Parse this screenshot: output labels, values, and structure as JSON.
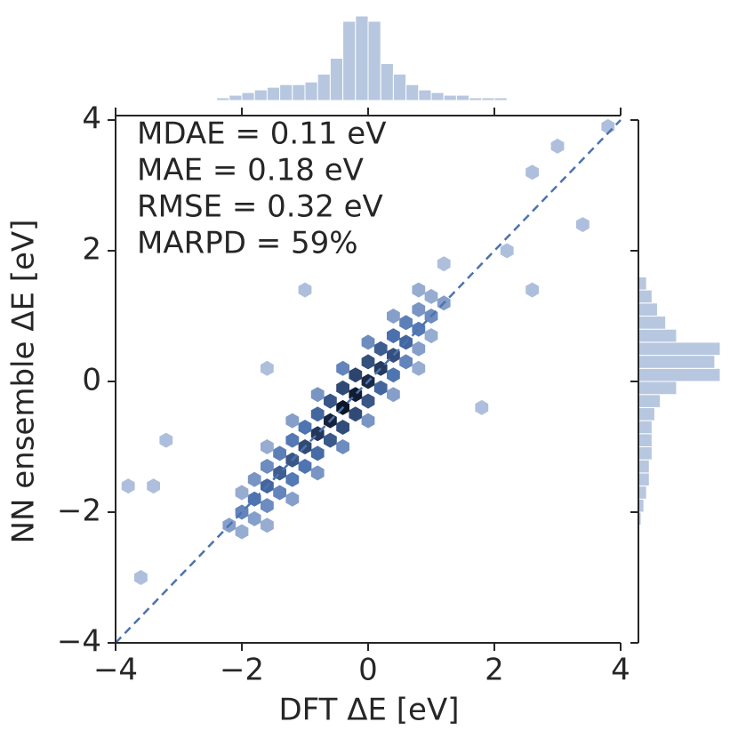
{
  "chart_data": {
    "type": "hexbin-joint",
    "xlabel": "DFT ΔE [eV]",
    "ylabel": "NN ensemble ΔE [eV]",
    "annotations": [
      "MDAE = 0.11 eV",
      "MAE = 0.18 eV",
      "RMSE = 0.32 eV",
      "MARPD = 59%"
    ],
    "xlim": [
      -4,
      4
    ],
    "ylim": [
      -4,
      4
    ],
    "xticks": [
      {
        "value": -4,
        "label": "−4"
      },
      {
        "value": -2,
        "label": "−2"
      },
      0,
      2,
      4
    ],
    "yticks": [
      {
        "value": -4,
        "label": "−4"
      },
      {
        "value": -2,
        "label": "−2"
      },
      0,
      2,
      4
    ],
    "color": "#4c72b0",
    "cells": {
      "x": [
        -2.2,
        -2.0,
        -1.8,
        -1.6,
        -1.4,
        -1.2,
        -1.0,
        -0.8,
        -0.6,
        -0.4,
        -0.2,
        0,
        0.2,
        0.4,
        0.6,
        0.8,
        1.0,
        1.2,
        -2.0,
        -1.8,
        -1.6,
        -1.4,
        -1.2,
        -1.0,
        -0.8,
        -0.6,
        -0.4,
        -0.2,
        0,
        0.2,
        0.4,
        0.6,
        0.8,
        1.0,
        -2.0,
        -1.8,
        -1.6,
        -1.4,
        -1.2,
        -1.0,
        -0.8,
        -0.6,
        -0.4,
        -0.2,
        0,
        0.2,
        0.4,
        0.6,
        0.8,
        1.0,
        -1.6,
        -1.2,
        -0.8,
        -0.4,
        0,
        0.4,
        0.8,
        -1.6,
        -1.2,
        -0.8,
        -0.4,
        0,
        0.4,
        0.8,
        -3.8,
        -3.4,
        -3.6,
        2.2,
        3.4,
        3.0,
        2.6,
        -1.6,
        1.8,
        -3.2,
        2.6,
        1.2,
        -1.0,
        3.8
      ],
      "y": [
        -2.2,
        -2.0,
        -1.8,
        -1.6,
        -1.4,
        -1.2,
        -1.0,
        -0.8,
        -0.6,
        -0.4,
        -0.2,
        0,
        0.2,
        0.4,
        0.6,
        0.8,
        1.0,
        1.2,
        -1.7,
        -1.5,
        -1.3,
        -1.1,
        -0.9,
        -0.7,
        -0.5,
        -0.3,
        -0.1,
        0.1,
        0.3,
        0.5,
        0.7,
        0.9,
        1.1,
        1.3,
        -2.3,
        -2.1,
        -1.9,
        -1.7,
        -1.5,
        -1.3,
        -1.1,
        -0.9,
        -0.7,
        -0.5,
        -0.3,
        -0.1,
        0.1,
        0.3,
        0.5,
        0.7,
        -1.0,
        -0.6,
        -0.2,
        0.2,
        0.6,
        1.0,
        1.4,
        -2.2,
        -1.8,
        -1.4,
        -1.0,
        -0.6,
        -0.2,
        0.2,
        -1.6,
        -1.6,
        -3.0,
        2.0,
        2.4,
        3.6,
        3.2,
        0.2,
        -0.4,
        -0.9,
        1.4,
        1.8,
        1.4,
        3.9
      ],
      "counts": [
        3,
        6,
        9,
        12,
        14,
        16,
        20,
        28,
        40,
        50,
        45,
        36,
        26,
        18,
        12,
        8,
        5,
        3,
        2,
        4,
        5,
        7,
        8,
        9,
        12,
        16,
        20,
        22,
        18,
        14,
        10,
        7,
        4,
        2,
        2,
        3,
        5,
        6,
        8,
        9,
        11,
        15,
        19,
        20,
        16,
        12,
        9,
        6,
        3,
        2,
        2,
        3,
        4,
        6,
        5,
        3,
        2,
        2,
        3,
        4,
        5,
        4,
        3,
        2,
        1,
        1,
        1,
        1,
        1,
        1,
        1,
        1,
        1,
        1,
        1,
        1,
        1,
        1
      ]
    },
    "top_hist": {
      "bins": [
        -4,
        -3.8,
        -3.6,
        -3.4,
        -3.2,
        -3,
        -2.8,
        -2.6,
        -2.4,
        -2.2,
        -2,
        -1.8,
        -1.6,
        -1.4,
        -1.2,
        -1,
        -0.8,
        -0.6,
        -0.4,
        -0.2,
        0,
        0.2,
        0.4,
        0.6,
        0.8,
        1,
        1.2,
        1.4,
        1.6,
        1.8,
        2,
        2.2,
        2.4,
        2.6,
        2.8,
        3,
        3.2,
        3.4,
        3.6,
        3.8,
        4
      ],
      "counts": [
        0,
        0,
        0,
        0,
        0,
        0,
        0,
        0,
        1,
        2,
        3,
        4,
        5,
        6,
        6,
        7,
        10,
        16,
        30,
        32,
        30,
        14,
        10,
        6,
        4,
        3,
        2,
        2,
        1,
        1,
        1,
        0,
        0,
        0,
        0,
        0,
        0,
        0,
        0,
        0
      ]
    },
    "right_hist": {
      "bins": [
        -2.2,
        -2,
        -1.8,
        -1.6,
        -1.4,
        -1.2,
        -1,
        -0.8,
        -0.6,
        -0.4,
        -0.2,
        0,
        0.2,
        0.4,
        0.6,
        0.8,
        1,
        1.2,
        1.4,
        1.6
      ],
      "counts": [
        1,
        2,
        3,
        4,
        4,
        5,
        5,
        5,
        6,
        8,
        14,
        30,
        28,
        30,
        14,
        10,
        7,
        5,
        3
      ]
    }
  }
}
